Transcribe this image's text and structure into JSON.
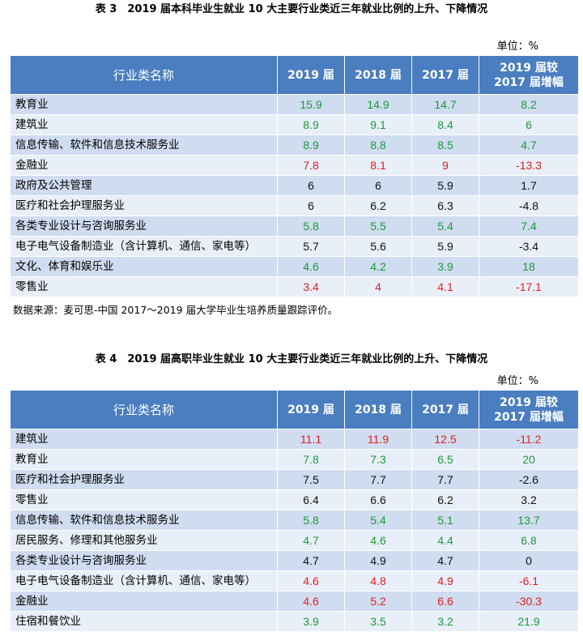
{
  "table3": {
    "caption": "表 3　2019 届本科毕业生就业 10 大主要行业类近三年就业比例的上升、下降情况",
    "unit": "单位：%",
    "headers": [
      "行业类名称",
      "2019 届",
      "2018 届",
      "2017 届",
      "2019 届较 2017 届增幅"
    ],
    "rows": [
      {
        "name": "教育业",
        "v2019": "15.9",
        "v2018": "14.9",
        "v2017": "14.7",
        "change": "8.2",
        "color": "g"
      },
      {
        "name": "建筑业",
        "v2019": "8.9",
        "v2018": "9.1",
        "v2017": "8.4",
        "change": "6",
        "color": "g"
      },
      {
        "name": "信息传输、软件和信息技术服务业",
        "v2019": "8.9",
        "v2018": "8.8",
        "v2017": "8.5",
        "change": "4.7",
        "color": "g"
      },
      {
        "name": "金融业",
        "v2019": "7.8",
        "v2018": "8.1",
        "v2017": "9",
        "change": "-13.3",
        "color": "r"
      },
      {
        "name": "政府及公共管理",
        "v2019": "6",
        "v2018": "6",
        "v2017": "5.9",
        "change": "1.7",
        "color": "k"
      },
      {
        "name": "医疗和社会护理服务业",
        "v2019": "6",
        "v2018": "6.2",
        "v2017": "6.3",
        "change": "-4.8",
        "color": "k"
      },
      {
        "name": "各类专业设计与咨询服务业",
        "v2019": "5.8",
        "v2018": "5.5",
        "v2017": "5.4",
        "change": "7.4",
        "color": "g"
      },
      {
        "name": "电子电气设备制造业（含计算机、通信、家电等）",
        "v2019": "5.7",
        "v2018": "5.6",
        "v2017": "5.9",
        "change": "-3.4",
        "color": "k"
      },
      {
        "name": "文化、体育和娱乐业",
        "v2019": "4.6",
        "v2018": "4.2",
        "v2017": "3.9",
        "change": "18",
        "color": "g"
      },
      {
        "name": "零售业",
        "v2019": "3.4",
        "v2018": "4",
        "v2017": "4.1",
        "change": "-17.1",
        "color": "r"
      }
    ],
    "source": "数据来源：麦可思-中国 2017～2019 届大学毕业生培养质量跟踪评价。"
  },
  "table4": {
    "caption": "表 4　2019 届高职毕业生就业 10 大主要行业类近三年就业比例的上升、下降情况",
    "unit": "单位：%",
    "headers": [
      "行业类名称",
      "2019 届",
      "2018 届",
      "2017 届",
      "2019 届较 2017 届增幅"
    ],
    "rows": [
      {
        "name": "建筑业",
        "v2019": "11.1",
        "v2018": "11.9",
        "v2017": "12.5",
        "change": "-11.2",
        "color": "r"
      },
      {
        "name": "教育业",
        "v2019": "7.8",
        "v2018": "7.3",
        "v2017": "6.5",
        "change": "20",
        "color": "g"
      },
      {
        "name": "医疗和社会护理服务业",
        "v2019": "7.5",
        "v2018": "7.7",
        "v2017": "7.7",
        "change": "-2.6",
        "color": "k"
      },
      {
        "name": "零售业",
        "v2019": "6.4",
        "v2018": "6.6",
        "v2017": "6.2",
        "change": "3.2",
        "color": "k"
      },
      {
        "name": "信息传输、软件和信息技术服务业",
        "v2019": "5.8",
        "v2018": "5.4",
        "v2017": "5.1",
        "change": "13.7",
        "color": "g"
      },
      {
        "name": "居民服务、修理和其他服务业",
        "v2019": "4.7",
        "v2018": "4.6",
        "v2017": "4.4",
        "change": "6.8",
        "color": "g"
      },
      {
        "name": "各类专业设计与咨询服务业",
        "v2019": "4.7",
        "v2018": "4.9",
        "v2017": "4.7",
        "change": "0",
        "color": "k"
      },
      {
        "name": "电子电气设备制造业（含计算机、通信、家电等）",
        "v2019": "4.6",
        "v2018": "4.8",
        "v2017": "4.9",
        "change": "-6.1",
        "color": "r"
      },
      {
        "name": "金融业",
        "v2019": "4.6",
        "v2018": "5.2",
        "v2017": "6.6",
        "change": "-30.3",
        "color": "r"
      },
      {
        "name": "住宿和餐饮业",
        "v2019": "3.9",
        "v2018": "3.5",
        "v2017": "3.2",
        "change": "21.9",
        "color": "g"
      }
    ]
  },
  "colors": {
    "header_bg": "#4a7ec0",
    "row_odd": "#d0dcef",
    "row_even": "#e9eff8",
    "up": "#1a9a3a",
    "down": "#e02020"
  }
}
